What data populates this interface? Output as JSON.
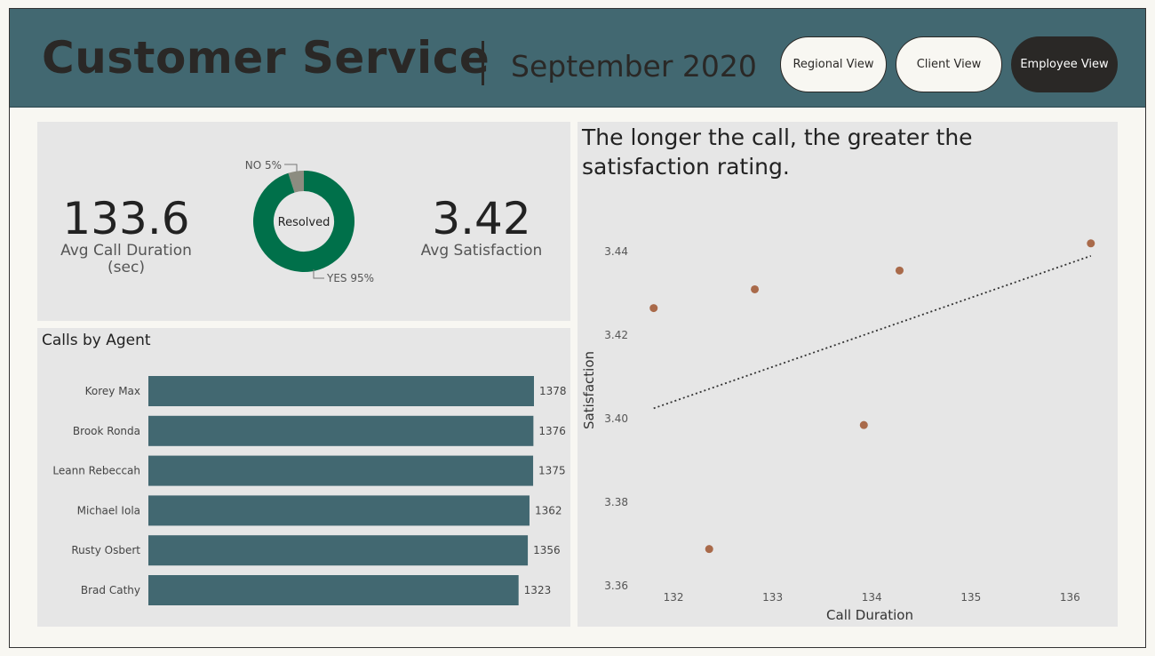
{
  "header": {
    "title": "Customer Service",
    "separator": "|",
    "subtitle": "September 2020",
    "nav": [
      {
        "label": "Regional View",
        "active": false
      },
      {
        "label": "Client View",
        "active": false
      },
      {
        "label": "Employee View",
        "active": true
      }
    ]
  },
  "colors": {
    "header_bg": "#426871",
    "panel_bg": "#e6e6e6",
    "bar": "#426871",
    "donut_yes": "#00704a",
    "donut_no": "#8c8c80",
    "point": "#a96a4a",
    "trend": "#333333"
  },
  "kpis": {
    "avg_call_duration": {
      "value": "133.6",
      "label_line1": "Avg Call Duration",
      "label_line2": "(sec)"
    },
    "avg_satisfaction": {
      "value": "3.42",
      "label": "Avg Satisfaction"
    }
  },
  "donut": {
    "center_label": "Resolved",
    "segments": [
      {
        "name": "YES",
        "percent": 95,
        "label": "YES 95%"
      },
      {
        "name": "NO",
        "percent": 5,
        "label": "NO 5%"
      }
    ]
  },
  "chart_data": [
    {
      "type": "bar",
      "title": "Calls by Agent",
      "orientation": "horizontal",
      "categories": [
        "Korey Max",
        "Brook Ronda",
        "Leann Rebeccah",
        "Michael Iola",
        "Rusty Osbert",
        "Brad Cathy"
      ],
      "values": [
        1378,
        1376,
        1375,
        1362,
        1356,
        1323
      ],
      "data_labels": [
        "1378",
        "1376",
        "1375",
        "1362",
        "1356",
        "1323"
      ],
      "xlim": [
        0,
        1378
      ],
      "grid": false
    },
    {
      "type": "scatter",
      "title_line1": "The longer the call, the greater the",
      "title_line2": "satisfaction rating.",
      "xlabel": "Call Duration",
      "ylabel": "Satisfaction",
      "xlim": [
        131.65,
        136.4
      ],
      "ylim": [
        3.36,
        3.446
      ],
      "xticks": [
        132,
        133,
        134,
        135,
        136
      ],
      "yticks": [
        3.36,
        3.38,
        3.4,
        3.42,
        3.44
      ],
      "ytick_labels": [
        "3.36",
        "3.38",
        "3.40",
        "3.42",
        "3.44"
      ],
      "points": [
        {
          "x": 131.8,
          "y": 3.4265
        },
        {
          "x": 132.36,
          "y": 3.3688
        },
        {
          "x": 132.82,
          "y": 3.431
        },
        {
          "x": 133.92,
          "y": 3.3985
        },
        {
          "x": 134.28,
          "y": 3.4355
        },
        {
          "x": 136.21,
          "y": 3.442
        }
      ],
      "trendline": {
        "x": [
          131.8,
          136.21
        ],
        "y": [
          3.4025,
          3.439
        ],
        "style": "dotted"
      },
      "grid": false
    }
  ]
}
